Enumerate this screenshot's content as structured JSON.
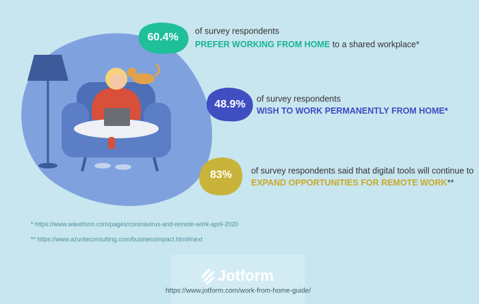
{
  "stats": [
    {
      "value": "60.4%",
      "line1": "of survey respondents",
      "highlight": "PREFER WORKING FROM HOME",
      "rest": " to a shared workplace*"
    },
    {
      "value": "48.9%",
      "line1": "of survey respondents",
      "highlight": "WISH TO WORK PERMANENTLY FROM HOME*",
      "rest": ""
    },
    {
      "value": "83%",
      "line1": "of survey respondents said that digital tools will continue to",
      "highlight": "EXPAND OPPORTUNITIES FOR REMOTE WORK",
      "rest": "**"
    }
  ],
  "footnotes": [
    "* https://www.waveform.com/pages/coronavirus-and-remote-work-april-2020",
    "** https://www.azuriteconsulting.com/businessimpact.html#next"
  ],
  "footer": {
    "brand": "Jotform",
    "url": "https://www.jotform.com/work-from-home-guide/"
  }
}
